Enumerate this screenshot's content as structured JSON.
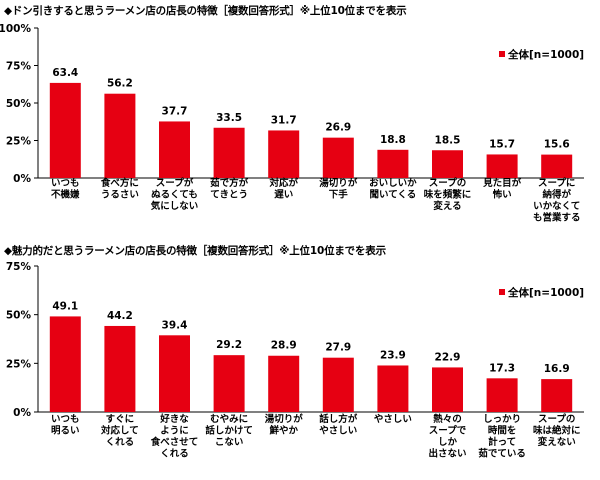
{
  "chart_data": [
    {
      "type": "bar",
      "title": "◆ドン引きすると思うラーメン店の店長の特徴［複数回答形式］※上位10位までを表示",
      "legend": "全体[n=1000]",
      "bar_color": "#e60012",
      "ylim": [
        0,
        100
      ],
      "yticks": [
        "0%",
        "25%",
        "50%",
        "75%",
        "100%"
      ],
      "categories": [
        [
          "いつも",
          "不機嫌"
        ],
        [
          "食べ方に",
          "うるさい"
        ],
        [
          "スープが",
          "ぬるくても",
          "気にしない"
        ],
        [
          "茹で方が",
          "てきとう"
        ],
        [
          "対応が",
          "遅い"
        ],
        [
          "湯切りが",
          "下手"
        ],
        [
          "おいしいか",
          "聞いてくる"
        ],
        [
          "スープの",
          "味を頻繁に",
          "変える"
        ],
        [
          "見た目が",
          "怖い"
        ],
        [
          "スープに",
          "納得が",
          "いかなくて",
          "も営業する"
        ]
      ],
      "values": [
        63.4,
        56.2,
        37.7,
        33.5,
        31.7,
        26.9,
        18.8,
        18.5,
        15.7,
        15.6
      ],
      "value_labels": [
        "63.4",
        "56.2",
        "37.7",
        "33.5",
        "31.7",
        "26.9",
        "18.8",
        "18.5",
        "15.7",
        "15.6"
      ]
    },
    {
      "type": "bar",
      "title": "◆魅力的だと思うラーメン店の店長の特徴［複数回答形式］※上位10位までを表示",
      "legend": "全体[n=1000]",
      "bar_color": "#e60012",
      "ylim": [
        0,
        75
      ],
      "yticks": [
        "0%",
        "25%",
        "50%",
        "75%"
      ],
      "categories": [
        [
          "いつも",
          "明るい"
        ],
        [
          "すぐに",
          "対応して",
          "くれる"
        ],
        [
          "好きな",
          "ように",
          "食べさせて",
          "くれる"
        ],
        [
          "むやみに",
          "話しかけて",
          "こない"
        ],
        [
          "湯切りが",
          "鮮やか"
        ],
        [
          "話し方が",
          "やさしい"
        ],
        [
          "やさしい"
        ],
        [
          "熱々の",
          "スープで",
          "しか",
          "出さない"
        ],
        [
          "しっかり",
          "時間を",
          "計って",
          "茹でている"
        ],
        [
          "スープの",
          "味は絶対に",
          "変えない"
        ]
      ],
      "values": [
        49.1,
        44.2,
        39.4,
        29.2,
        28.9,
        27.9,
        23.9,
        22.9,
        17.3,
        16.9
      ],
      "value_labels": [
        "49.1",
        "44.2",
        "39.4",
        "29.2",
        "28.9",
        "27.9",
        "23.9",
        "22.9",
        "17.3",
        "16.9"
      ]
    }
  ]
}
